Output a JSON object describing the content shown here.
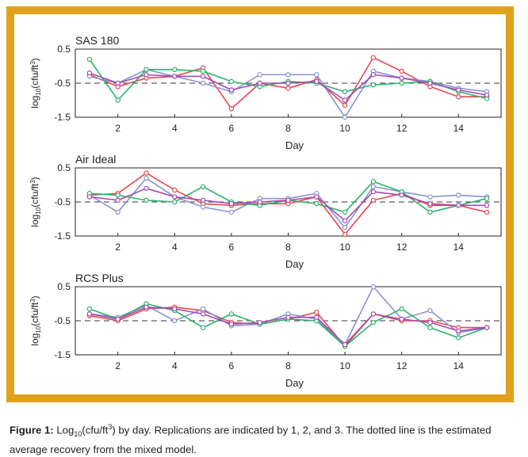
{
  "caption": {
    "label": "Figure 1:",
    "text_part1": " Log",
    "sub": "10",
    "text_part2": "(cfu/ft",
    "sup": "3",
    "text_part3": ") by day. Replications are indicated by 1, 2, and 3. The dotted line is the estimated average recovery from the mixed model."
  },
  "colors": {
    "series1": "#e8474f",
    "series2": "#8a93cf",
    "series3": "#2bb36a",
    "series4": "#a44bb1",
    "frame": "#e0a21c",
    "dashed": "#333333"
  },
  "chart_data": [
    {
      "type": "line",
      "title": "SAS 180",
      "xlabel": "Day",
      "ylabel": "log10(cfu/ft³)",
      "ylim": [
        -1.5,
        0.5
      ],
      "xlim": [
        0.5,
        15.5
      ],
      "x_ticks": [
        2,
        4,
        6,
        8,
        10,
        12,
        14
      ],
      "y_ticks": [
        0.5,
        -0.5,
        -1.5
      ],
      "reference_y": -0.5,
      "x": [
        1,
        2,
        3,
        4,
        5,
        6,
        7,
        8,
        9,
        10,
        11,
        12,
        13,
        14,
        15
      ],
      "series": [
        {
          "values": [
            -0.25,
            -0.6,
            -0.35,
            -0.3,
            -0.05,
            -1.25,
            -0.5,
            -0.65,
            -0.4,
            -1.15,
            0.25,
            -0.15,
            -0.6,
            -0.9,
            -0.9
          ]
        },
        {
          "values": [
            -0.3,
            -0.5,
            -0.1,
            -0.3,
            -0.5,
            -0.75,
            -0.25,
            -0.25,
            -0.25,
            -1.5,
            -0.15,
            -0.35,
            -0.45,
            -0.65,
            -0.75
          ]
        },
        {
          "values": [
            0.2,
            -1.0,
            -0.1,
            -0.1,
            -0.15,
            -0.45,
            -0.6,
            -0.45,
            -0.5,
            -0.75,
            -0.55,
            -0.5,
            -0.45,
            -0.75,
            -0.95
          ]
        },
        {
          "values": [
            -0.2,
            -0.5,
            -0.25,
            -0.3,
            -0.3,
            -0.7,
            -0.5,
            -0.5,
            -0.45,
            -1.0,
            -0.25,
            -0.35,
            -0.5,
            -0.7,
            -0.85
          ]
        }
      ]
    },
    {
      "type": "line",
      "title": "Air Ideal",
      "xlabel": "Day",
      "ylabel": "log10(cfu/ft³)",
      "ylim": [
        -1.5,
        0.5
      ],
      "xlim": [
        0.5,
        15.5
      ],
      "x_ticks": [
        2,
        4,
        6,
        8,
        10,
        12,
        14
      ],
      "y_ticks": [
        0.5,
        -0.5,
        -1.5
      ],
      "reference_y": -0.5,
      "x": [
        1,
        2,
        3,
        4,
        5,
        6,
        7,
        8,
        9,
        10,
        11,
        12,
        13,
        14,
        15
      ],
      "series": [
        {
          "values": [
            -0.3,
            -0.25,
            0.35,
            -0.15,
            -0.55,
            -0.6,
            -0.55,
            -0.55,
            -0.35,
            -1.45,
            -0.45,
            -0.25,
            -0.6,
            -0.6,
            -0.8
          ]
        },
        {
          "values": [
            -0.3,
            -0.8,
            0.2,
            -0.35,
            -0.65,
            -0.8,
            -0.4,
            -0.4,
            -0.25,
            -1.25,
            -0.05,
            -0.2,
            -0.35,
            -0.3,
            -0.35
          ]
        },
        {
          "values": [
            -0.25,
            -0.3,
            -0.45,
            -0.5,
            -0.05,
            -0.5,
            -0.6,
            -0.45,
            -0.55,
            -0.8,
            0.1,
            -0.2,
            -0.8,
            -0.6,
            -0.4
          ]
        },
        {
          "values": [
            -0.35,
            -0.45,
            -0.1,
            -0.35,
            -0.45,
            -0.55,
            -0.5,
            -0.45,
            -0.35,
            -1.05,
            -0.2,
            -0.3,
            -0.55,
            -0.6,
            -0.6
          ]
        }
      ]
    },
    {
      "type": "line",
      "title": "RCS Plus",
      "xlabel": "Day",
      "ylabel": "log10(cfu/ft³)",
      "ylim": [
        -1.5,
        0.5
      ],
      "xlim": [
        0.5,
        15.5
      ],
      "x_ticks": [
        2,
        4,
        6,
        8,
        10,
        12,
        14
      ],
      "y_ticks": [
        0.5,
        -0.5,
        -1.5
      ],
      "reference_y": -0.5,
      "x": [
        1,
        2,
        3,
        4,
        5,
        6,
        7,
        8,
        9,
        10,
        11,
        12,
        13,
        14,
        15
      ],
      "series": [
        {
          "values": [
            -0.35,
            -0.5,
            -0.15,
            -0.1,
            -0.2,
            -0.55,
            -0.6,
            -0.45,
            -0.25,
            -1.25,
            -0.3,
            -0.5,
            -0.5,
            -0.7,
            -0.7
          ]
        },
        {
          "values": [
            -0.3,
            -0.4,
            -0.05,
            -0.5,
            -0.15,
            -0.65,
            -0.6,
            -0.3,
            -0.45,
            -1.2,
            0.5,
            -0.45,
            -0.2,
            -0.85,
            -0.7
          ]
        },
        {
          "values": [
            -0.15,
            -0.45,
            0.0,
            -0.2,
            -0.7,
            -0.3,
            -0.6,
            -0.45,
            -0.5,
            -1.25,
            -0.55,
            -0.15,
            -0.7,
            -1.0,
            -0.7
          ]
        },
        {
          "values": [
            -0.3,
            -0.45,
            -0.1,
            -0.15,
            -0.3,
            -0.6,
            -0.55,
            -0.4,
            -0.4,
            -1.2,
            -0.3,
            -0.45,
            -0.55,
            -0.8,
            -0.7
          ]
        }
      ]
    }
  ]
}
